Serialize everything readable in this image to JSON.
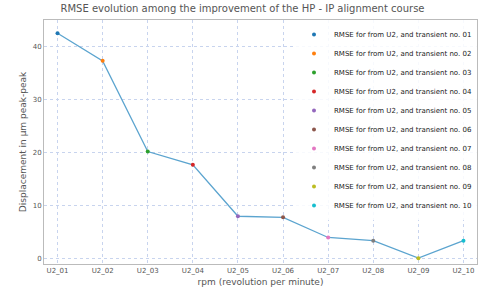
{
  "chart_data": {
    "type": "line",
    "title": "RMSE evolution among the improvement of the HP - IP alignment course",
    "x_label": "rpm (revolution per minute)",
    "y_label": "Displacement in µm peak-peak",
    "categories": [
      "U2_01",
      "U2_02",
      "U2_03",
      "U2_04",
      "U2_05",
      "U2_06",
      "U2_07",
      "U2_08",
      "U2_09",
      "U2_10"
    ],
    "color": "#5ba4cf",
    "series": [
      {
        "name": "RMSE for from U2, and transient no. 01",
        "type": "scatter",
        "marker": "circle",
        "color": "#1f77b4",
        "values": [
          42.5,
          null,
          null,
          null,
          null,
          null,
          null,
          null,
          null,
          null
        ]
      },
      {
        "name": "RMSE for from U2, and transient no. 02",
        "type": "scatter",
        "marker": "circle",
        "color": "#ff7f0e",
        "values": [
          null,
          37.3,
          null,
          null,
          null,
          null,
          null,
          null,
          null,
          null
        ]
      },
      {
        "name": "RMSE for from U2, and transient no. 03",
        "type": "scatter",
        "marker": "circle",
        "color": "#2ca02c",
        "values": [
          null,
          null,
          20.2,
          null,
          null,
          null,
          null,
          null,
          null,
          null
        ]
      },
      {
        "name": "RMSE for from U2, and transient no. 04",
        "type": "scatter",
        "marker": "circle",
        "color": "#d62728",
        "values": [
          null,
          null,
          null,
          17.7,
          null,
          null,
          null,
          null,
          null,
          null
        ]
      },
      {
        "name": "RMSE for from U2, and transient no. 05",
        "type": "scatter",
        "marker": "circle",
        "color": "#9467bd",
        "values": [
          null,
          null,
          null,
          null,
          8.0,
          null,
          null,
          null,
          null,
          null
        ]
      },
      {
        "name": "RMSE for from U2, and transient no. 06",
        "type": "scatter",
        "marker": "circle",
        "color": "#8c564b",
        "values": [
          null,
          null,
          null,
          null,
          null,
          7.8,
          null,
          null,
          null,
          null
        ]
      },
      {
        "name": "RMSE for from U2, and transient no. 07",
        "type": "scatter",
        "marker": "circle",
        "color": "#e377c2",
        "values": [
          null,
          null,
          null,
          null,
          null,
          null,
          4.0,
          null,
          null,
          null
        ]
      },
      {
        "name": "RMSE for from U2, and transient no. 08",
        "type": "scatter",
        "marker": "circle",
        "color": "#7f7f7f",
        "values": [
          null,
          null,
          null,
          null,
          null,
          null,
          null,
          3.4,
          null,
          null
        ]
      },
      {
        "name": "RMSE for from U2, and transient no. 09",
        "type": "scatter",
        "marker": "circle",
        "color": "#bcbd22",
        "values": [
          null,
          null,
          null,
          null,
          null,
          null,
          null,
          null,
          0.1,
          null
        ]
      },
      {
        "name": "RMSE for from U2, and transient no. 10",
        "type": "scatter",
        "marker": "circle",
        "color": "#17becf",
        "values": [
          null,
          null,
          null,
          null,
          null,
          null,
          null,
          null,
          null,
          3.4
        ]
      }
    ],
    "ylim": [
      -1,
      45
    ],
    "yticks": [
      0,
      10,
      20,
      30,
      40
    ],
    "grid": true,
    "legend": "upper right"
  }
}
